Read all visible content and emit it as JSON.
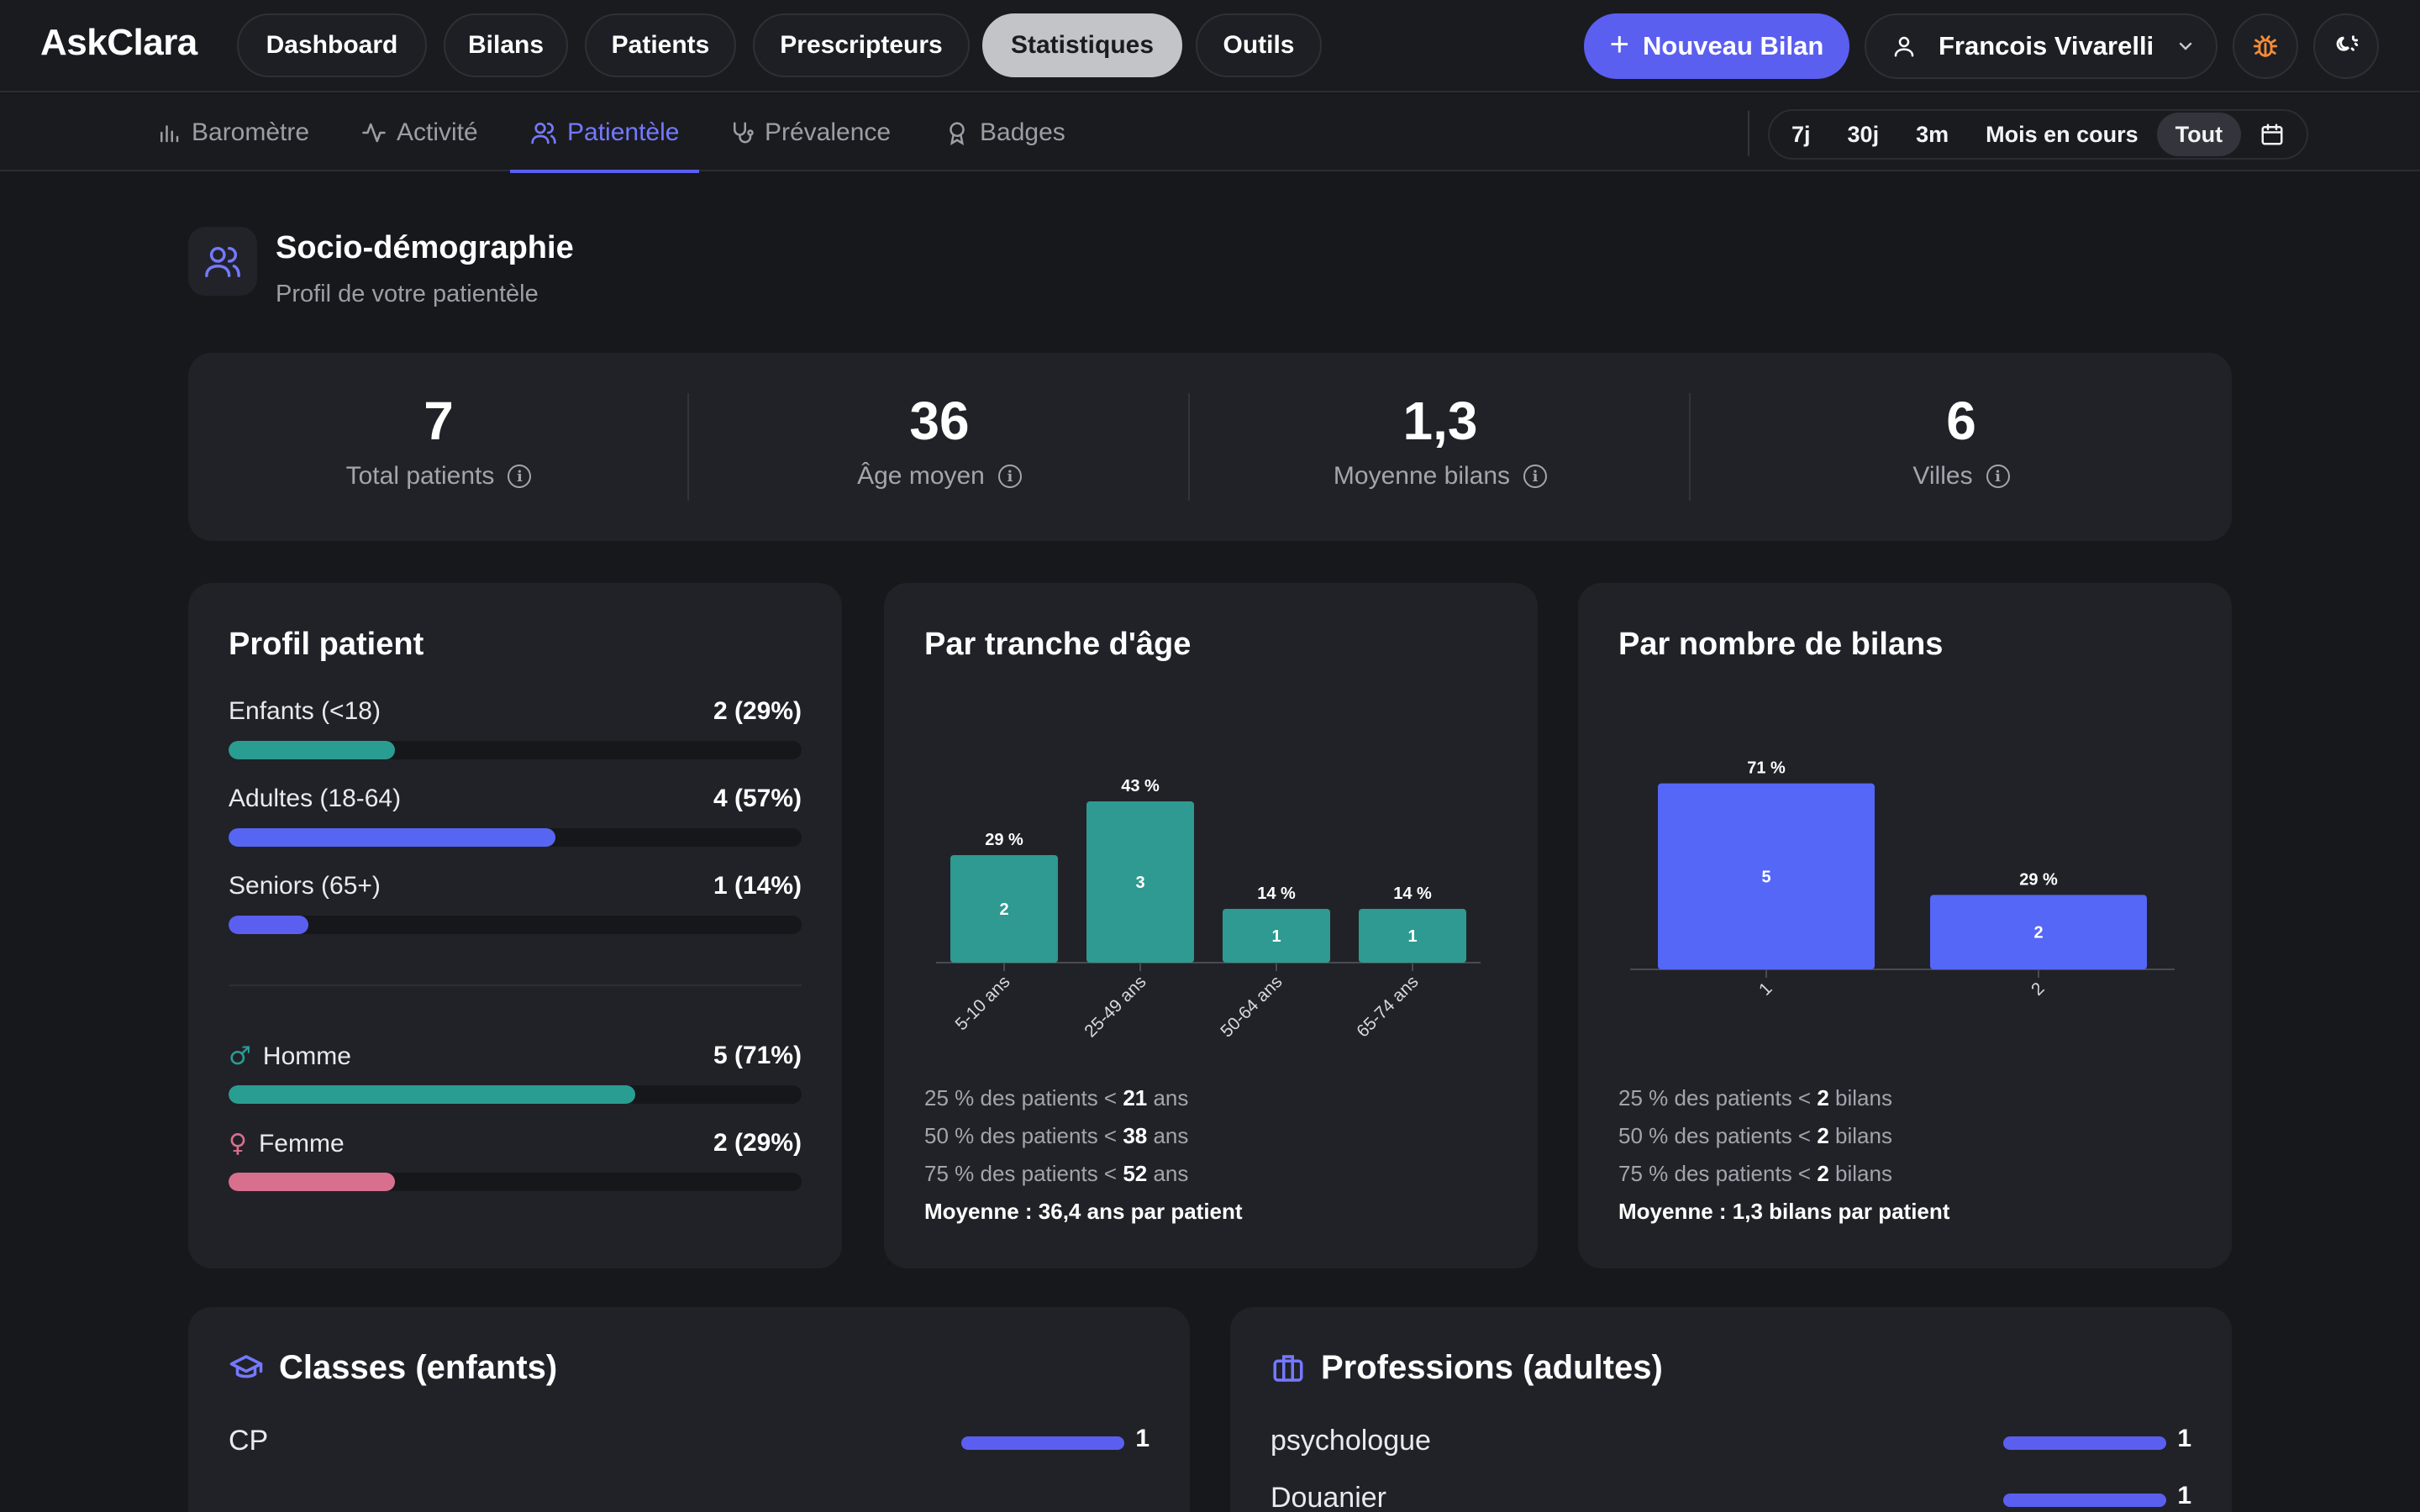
{
  "app": {
    "name": "AskClara"
  },
  "topnav": {
    "items": [
      "Dashboard",
      "Bilans",
      "Patients",
      "Prescripteurs",
      "Statistiques",
      "Outils"
    ],
    "active": "Statistiques",
    "new_button": "Nouveau Bilan",
    "user_name": "Francois Vivarelli"
  },
  "subnav": {
    "tabs": [
      {
        "label": "Baromètre",
        "icon": "bar-chart-icon"
      },
      {
        "label": "Activité",
        "icon": "activity-icon"
      },
      {
        "label": "Patientèle",
        "icon": "users-icon"
      },
      {
        "label": "Prévalence",
        "icon": "stethoscope-icon"
      },
      {
        "label": "Badges",
        "icon": "award-icon"
      }
    ],
    "active": "Patientèle",
    "ranges": [
      "7j",
      "30j",
      "3m",
      "Mois en cours",
      "Tout"
    ],
    "active_range": "Tout"
  },
  "section": {
    "title": "Socio-démographie",
    "subtitle": "Profil de votre patientèle"
  },
  "kpis": [
    {
      "value": "7",
      "label": "Total patients"
    },
    {
      "value": "36",
      "label": "Âge moyen"
    },
    {
      "value": "1,3",
      "label": "Moyenne bilans"
    },
    {
      "value": "6",
      "label": "Villes"
    }
  ],
  "profil": {
    "title": "Profil patient",
    "rows": [
      {
        "label": "Enfants (<18)",
        "count": "2 (29%)",
        "ratio": 0.29,
        "color": "#2a9d92"
      },
      {
        "label": "Adultes (18-64)",
        "count": "4 (57%)",
        "ratio": 0.57,
        "color": "#5766f2"
      },
      {
        "label": "Seniors (65+)",
        "count": "1 (14%)",
        "ratio": 0.14,
        "color": "#5b5ff0"
      }
    ],
    "gender": [
      {
        "label": "Homme",
        "symbol": "♂",
        "count": "5 (71%)",
        "ratio": 0.71,
        "color": "#2a9d92"
      },
      {
        "label": "Femme",
        "symbol": "♀",
        "count": "2 (29%)",
        "ratio": 0.29,
        "color": "#d96f8e"
      }
    ]
  },
  "age_chart": {
    "title": "Par tranche d'âge",
    "stats": [
      {
        "prefix": "25 % des patients < ",
        "value": "21",
        "suffix": " ans"
      },
      {
        "prefix": "50 % des patients < ",
        "value": "38",
        "suffix": " ans"
      },
      {
        "prefix": "75 % des patients < ",
        "value": "52",
        "suffix": " ans"
      }
    ],
    "summary": "Moyenne : 36,4 ans par patient"
  },
  "bilans_chart": {
    "title": "Par nombre de bilans",
    "stats": [
      {
        "prefix": "25 % des patients < ",
        "value": "2",
        "suffix": " bilans"
      },
      {
        "prefix": "50 % des patients < ",
        "value": "2",
        "suffix": " bilans"
      },
      {
        "prefix": "75 % des patients < ",
        "value": "2",
        "suffix": " bilans"
      }
    ],
    "summary": "Moyenne : 1,3 bilans par patient"
  },
  "chart_data": [
    {
      "type": "bar",
      "categories": [
        "5-10 ans",
        "25-49 ans",
        "50-64 ans",
        "65-74 ans"
      ],
      "values": [
        2,
        3,
        1,
        1
      ],
      "labels": [
        "29 %",
        "43 %",
        "14 %",
        "14 %"
      ],
      "color": "#2e9a91",
      "ylim": [
        0,
        3.5
      ]
    },
    {
      "type": "bar",
      "categories": [
        "1",
        "2"
      ],
      "values": [
        5,
        2
      ],
      "labels": [
        "71 %",
        "29 %"
      ],
      "color": "#5567f7",
      "ylim": [
        0,
        5.6
      ]
    }
  ],
  "classes": {
    "title": "Classes (enfants)",
    "items": [
      {
        "name": "CP",
        "value": "1"
      }
    ]
  },
  "professions": {
    "title": "Professions (adultes)",
    "items": [
      {
        "name": "psychologue",
        "value": "1"
      },
      {
        "name": "Douanier",
        "value": "1"
      }
    ]
  },
  "colors": {
    "accent": "#5b5ff0",
    "teal": "#2a9d92",
    "pink": "#d96f8e",
    "background": "#17181c",
    "card": "#212227"
  }
}
